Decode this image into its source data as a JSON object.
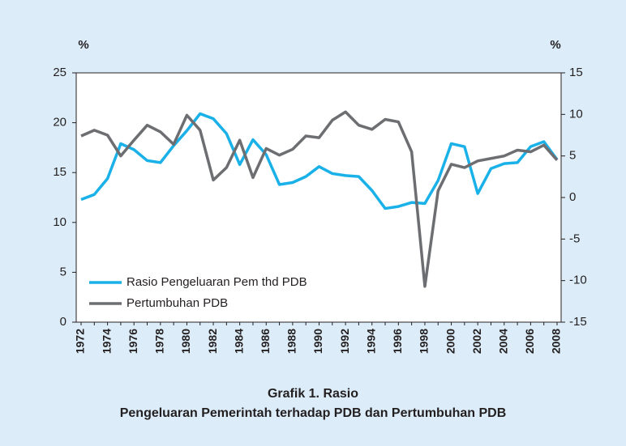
{
  "chart_data": {
    "type": "line",
    "title_lines": [
      "Grafik 1. Rasio",
      "Pengeluaran Pemerintah terhadap PDB dan Pertumbuhan PDB"
    ],
    "ylabel": "%",
    "y2label": "%",
    "categories": [
      "1972",
      null,
      "1974",
      null,
      "1976",
      null,
      "1978",
      null,
      "1980",
      null,
      "1982",
      null,
      "1984",
      null,
      "1986",
      null,
      "1988",
      null,
      "1990",
      null,
      "1992",
      null,
      "1994",
      null,
      "1996",
      null,
      "1998",
      null,
      "2000",
      null,
      "2002",
      null,
      "2004",
      null,
      "2006",
      null,
      "2008"
    ],
    "series": [
      {
        "name": "Rasio Pengeluaran Pem thd PDB",
        "color": "#1ab1e8",
        "values": [
          12.3,
          12.8,
          14.4,
          17.9,
          17.3,
          16.2,
          16.0,
          17.7,
          19.2,
          20.9,
          20.4,
          18.9,
          15.8,
          18.3,
          16.8,
          13.8,
          14.0,
          14.6,
          15.6,
          14.9,
          14.7,
          14.6,
          13.2,
          11.4,
          11.6,
          12.0,
          11.9,
          14.2,
          17.9,
          17.6,
          12.9,
          15.4,
          15.9,
          16.0,
          17.6,
          18.1,
          16.3
        ]
      },
      {
        "name": "Pertumbuhan PDB",
        "color": "#6d6e71",
        "axis": "y2",
        "values": [
          7.4,
          8.1,
          7.5,
          5.0,
          6.9,
          8.7,
          7.9,
          6.4,
          9.9,
          8.1,
          2.1,
          3.6,
          6.9,
          2.4,
          5.9,
          5.1,
          5.8,
          7.4,
          7.2,
          9.3,
          10.3,
          8.7,
          8.2,
          9.4,
          9.1,
          5.5,
          -10.7,
          0.8,
          4.0,
          3.6,
          4.4,
          4.7,
          5.0,
          5.7,
          5.5,
          6.3,
          4.5
        ]
      }
    ],
    "ylim": [
      0,
      25
    ],
    "yticks": [
      0,
      5,
      10,
      15,
      20,
      25
    ],
    "y2lim": [
      -15,
      15
    ],
    "y2ticks": [
      -15,
      -10,
      -5,
      0,
      5,
      10,
      15
    ],
    "legend": "lower left"
  }
}
